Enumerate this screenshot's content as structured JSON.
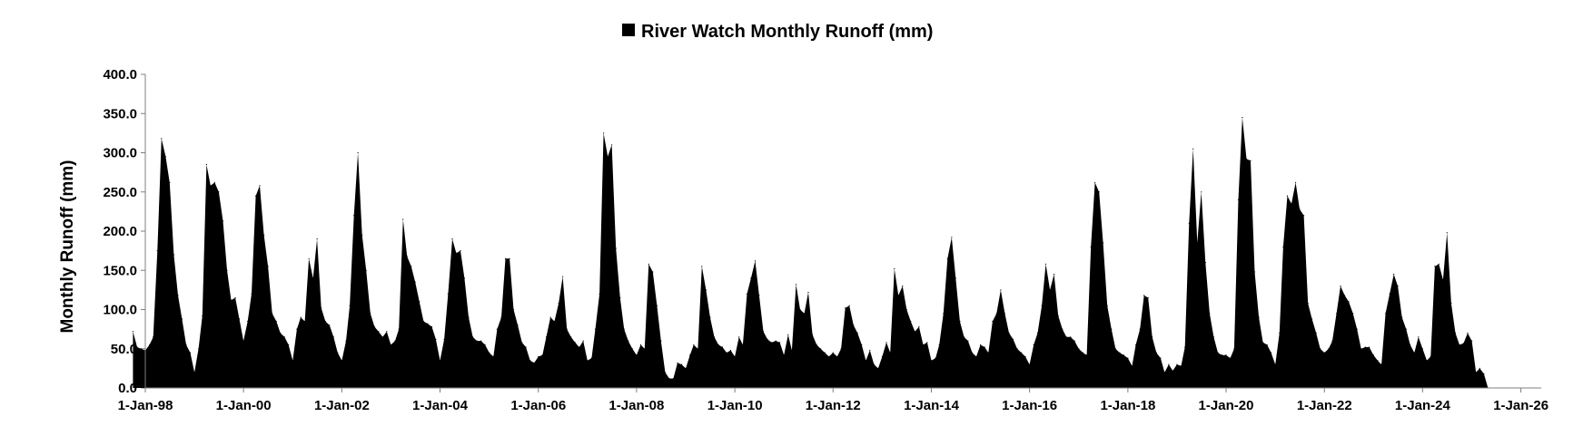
{
  "chart_data": {
    "type": "area",
    "title": "",
    "xlabel": "",
    "ylabel": "Monthly Runoff (mm)",
    "ylim": [
      0,
      400
    ],
    "yticks": [
      "0.0",
      "50.0",
      "100.0",
      "150.0",
      "200.0",
      "250.0",
      "300.0",
      "350.0",
      "400.0"
    ],
    "xlim": [
      "1998-01-01",
      "2026-06-01"
    ],
    "xticks": [
      {
        "date": "1998-01-01",
        "label": "1-Jan-98"
      },
      {
        "date": "2000-01-01",
        "label": "1-Jan-00"
      },
      {
        "date": "2002-01-01",
        "label": "1-Jan-02"
      },
      {
        "date": "2004-01-01",
        "label": "1-Jan-04"
      },
      {
        "date": "2006-01-01",
        "label": "1-Jan-06"
      },
      {
        "date": "2008-01-01",
        "label": "1-Jan-08"
      },
      {
        "date": "2010-01-01",
        "label": "1-Jan-10"
      },
      {
        "date": "2012-01-01",
        "label": "1-Jan-12"
      },
      {
        "date": "2014-01-01",
        "label": "1-Jan-14"
      },
      {
        "date": "2016-01-01",
        "label": "1-Jan-16"
      },
      {
        "date": "2018-01-01",
        "label": "1-Jan-18"
      },
      {
        "date": "2020-01-01",
        "label": "1-Jan-20"
      },
      {
        "date": "2022-01-01",
        "label": "1-Jan-22"
      },
      {
        "date": "2024-01-01",
        "label": "1-Jan-24"
      },
      {
        "date": "2026-01-01",
        "label": "1-Jan-26"
      }
    ],
    "legend_position": "top-center",
    "grid": false,
    "series": [
      {
        "name": "River Watch Monthly Runoff (mm)",
        "color": "#000000",
        "start": "1997-10-01",
        "frequency": "monthly",
        "values": [
          72,
          52,
          50,
          48,
          55,
          65,
          175,
          318,
          295,
          262,
          170,
          118,
          88,
          55,
          45,
          20,
          50,
          92,
          285,
          258,
          262,
          250,
          213,
          150,
          112,
          115,
          88,
          60,
          85,
          120,
          245,
          258,
          195,
          155,
          95,
          85,
          70,
          65,
          55,
          35,
          75,
          90,
          85,
          165,
          140,
          190,
          102,
          85,
          80,
          65,
          45,
          35,
          60,
          105,
          220,
          300,
          195,
          150,
          95,
          78,
          72,
          65,
          72,
          55,
          60,
          75,
          215,
          168,
          155,
          135,
          110,
          85,
          82,
          78,
          62,
          35,
          62,
          120,
          190,
          172,
          175,
          140,
          90,
          65,
          60,
          60,
          55,
          45,
          40,
          75,
          90,
          165,
          165,
          100,
          80,
          58,
          52,
          35,
          32,
          40,
          42,
          65,
          90,
          85,
          108,
          142,
          75,
          65,
          58,
          52,
          60,
          35,
          38,
          75,
          120,
          325,
          295,
          310,
          178,
          115,
          75,
          60,
          50,
          42,
          55,
          50,
          158,
          148,
          105,
          60,
          20,
          12,
          12,
          32,
          30,
          25,
          42,
          55,
          50,
          155,
          125,
          90,
          65,
          55,
          52,
          45,
          48,
          40,
          65,
          55,
          120,
          140,
          162,
          118,
          72,
          62,
          58,
          60,
          58,
          42,
          68,
          48,
          132,
          100,
          95,
          122,
          68,
          55,
          50,
          45,
          40,
          45,
          40,
          50,
          102,
          105,
          80,
          70,
          55,
          35,
          48,
          30,
          25,
          40,
          58,
          45,
          152,
          118,
          130,
          100,
          85,
          72,
          78,
          55,
          58,
          35,
          38,
          55,
          95,
          165,
          192,
          140,
          85,
          65,
          60,
          45,
          40,
          55,
          52,
          45,
          85,
          95,
          125,
          95,
          70,
          62,
          50,
          45,
          40,
          30,
          55,
          70,
          105,
          158,
          125,
          145,
          92,
          75,
          65,
          65,
          60,
          50,
          45,
          42,
          180,
          262,
          250,
          185,
          105,
          75,
          50,
          45,
          42,
          38,
          28,
          55,
          75,
          118,
          115,
          65,
          45,
          38,
          20,
          30,
          22,
          30,
          28,
          52,
          210,
          305,
          185,
          250,
          160,
          95,
          65,
          45,
          42,
          42,
          38,
          50,
          240,
          345,
          292,
          290,
          148,
          90,
          58,
          55,
          45,
          30,
          70,
          180,
          245,
          235,
          262,
          228,
          220,
          108,
          88,
          70,
          50,
          45,
          50,
          60,
          95,
          130,
          118,
          110,
          95,
          75,
          50,
          52,
          52,
          42,
          35,
          30,
          95,
          120,
          145,
          130,
          90,
          75,
          55,
          45,
          65,
          50,
          35,
          40,
          155,
          158,
          138,
          198,
          108,
          70,
          55,
          57,
          70,
          60,
          20,
          25,
          18,
          0
        ]
      }
    ]
  }
}
